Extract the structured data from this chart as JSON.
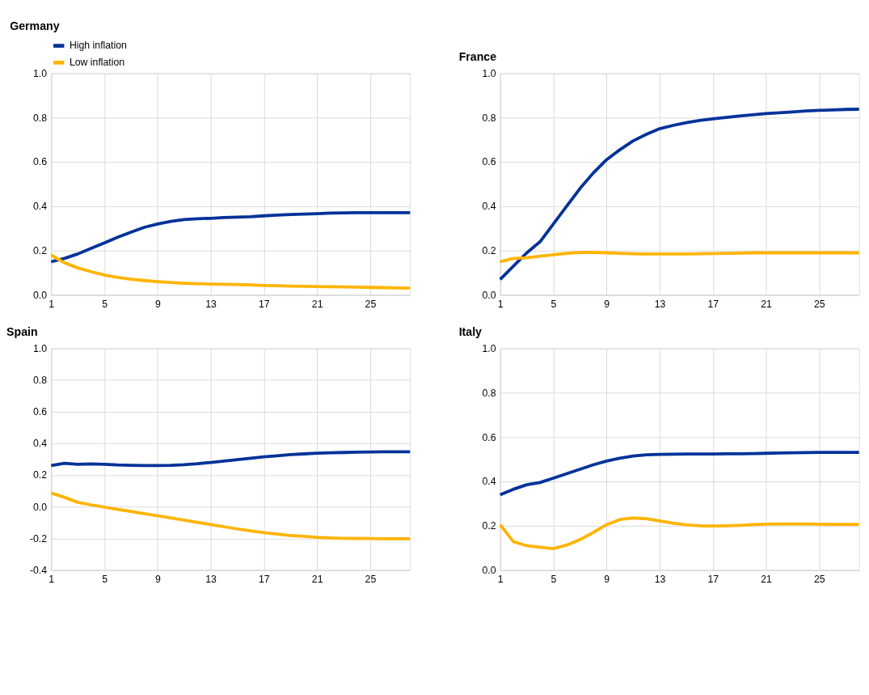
{
  "chart_data": [
    {
      "type": "line",
      "title": "Germany",
      "x": [
        1,
        2,
        3,
        4,
        5,
        6,
        7,
        8,
        9,
        10,
        11,
        12,
        13,
        14,
        15,
        16,
        17,
        18,
        19,
        20,
        21,
        22,
        23,
        24,
        25,
        26,
        27,
        28
      ],
      "xlim": [
        1,
        28
      ],
      "xticks": [
        1,
        5,
        9,
        13,
        17,
        21,
        25
      ],
      "ylim": [
        0,
        1
      ],
      "yticks": [
        {
          "value": 0,
          "label": "0.0"
        },
        {
          "value": 0.2,
          "label": "0.2"
        },
        {
          "value": 0.4,
          "label": "0.4"
        },
        {
          "value": 0.6,
          "label": "0.6"
        },
        {
          "value": 0.8,
          "label": "0.8"
        },
        {
          "value": 1,
          "label": "1.0"
        }
      ],
      "grid": true,
      "legend": "top left",
      "series": [
        {
          "name": "High inflation",
          "color": "#003299",
          "values": [
            0.15,
            0.165,
            0.185,
            0.21,
            0.235,
            0.26,
            0.283,
            0.305,
            0.32,
            0.332,
            0.34,
            0.344,
            0.346,
            0.349,
            0.351,
            0.353,
            0.357,
            0.36,
            0.363,
            0.365,
            0.367,
            0.369,
            0.37,
            0.371,
            0.371,
            0.371,
            0.371,
            0.371
          ]
        },
        {
          "name": "Low inflation",
          "color": "#ffb400",
          "values": [
            0.18,
            0.145,
            0.122,
            0.105,
            0.09,
            0.079,
            0.071,
            0.065,
            0.06,
            0.056,
            0.053,
            0.051,
            0.049,
            0.048,
            0.047,
            0.045,
            0.043,
            0.042,
            0.04,
            0.039,
            0.038,
            0.037,
            0.036,
            0.035,
            0.034,
            0.033,
            0.032,
            0.031
          ]
        }
      ]
    },
    {
      "type": "line",
      "title": "France",
      "x": [
        1,
        2,
        3,
        4,
        5,
        6,
        7,
        8,
        9,
        10,
        11,
        12,
        13,
        14,
        15,
        16,
        17,
        18,
        19,
        20,
        21,
        22,
        23,
        24,
        25,
        26,
        27,
        28
      ],
      "xlim": [
        1,
        28
      ],
      "xticks": [
        1,
        5,
        9,
        13,
        17,
        21,
        25
      ],
      "ylim": [
        0,
        1
      ],
      "yticks": [
        {
          "value": 0,
          "label": "0.0"
        },
        {
          "value": 0.2,
          "label": "0.2"
        },
        {
          "value": 0.4,
          "label": "0.4"
        },
        {
          "value": 0.6,
          "label": "0.6"
        },
        {
          "value": 0.8,
          "label": "0.8"
        },
        {
          "value": 1,
          "label": "1.0"
        }
      ],
      "grid": true,
      "series": [
        {
          "color": "#003299",
          "values": [
            0.07,
            0.13,
            0.19,
            0.24,
            0.32,
            0.4,
            0.48,
            0.55,
            0.61,
            0.655,
            0.695,
            0.725,
            0.75,
            0.765,
            0.777,
            0.787,
            0.795,
            0.801,
            0.807,
            0.813,
            0.818,
            0.822,
            0.826,
            0.83,
            0.833,
            0.835,
            0.837,
            0.838
          ]
        },
        {
          "color": "#ffb400",
          "values": [
            0.15,
            0.165,
            0.168,
            0.175,
            0.181,
            0.188,
            0.191,
            0.192,
            0.19,
            0.188,
            0.186,
            0.185,
            0.185,
            0.185,
            0.185,
            0.186,
            0.187,
            0.188,
            0.189,
            0.19,
            0.19,
            0.19,
            0.19,
            0.19,
            0.19,
            0.19,
            0.19,
            0.19
          ]
        }
      ]
    },
    {
      "type": "line",
      "title": "Spain",
      "x": [
        1,
        2,
        3,
        4,
        5,
        6,
        7,
        8,
        9,
        10,
        11,
        12,
        13,
        14,
        15,
        16,
        17,
        18,
        19,
        20,
        21,
        22,
        23,
        24,
        25,
        26,
        27,
        28
      ],
      "xlim": [
        1,
        28
      ],
      "xticks": [
        1,
        5,
        9,
        13,
        17,
        21,
        25
      ],
      "ylim": [
        -0.4,
        1
      ],
      "yticks": [
        {
          "value": -0.4,
          "label": "-0.4"
        },
        {
          "value": -0.2,
          "label": "-0.2"
        },
        {
          "value": 0,
          "label": "0.0"
        },
        {
          "value": 0.2,
          "label": "0.2"
        },
        {
          "value": 0.4,
          "label": "0.4"
        },
        {
          "value": 0.6,
          "label": "0.6"
        },
        {
          "value": 0.8,
          "label": "0.8"
        },
        {
          "value": 1,
          "label": "1.0"
        }
      ],
      "grid": true,
      "series": [
        {
          "color": "#003299",
          "values": [
            0.26,
            0.275,
            0.268,
            0.271,
            0.268,
            0.264,
            0.262,
            0.26,
            0.26,
            0.262,
            0.266,
            0.272,
            0.28,
            0.289,
            0.298,
            0.307,
            0.315,
            0.322,
            0.329,
            0.334,
            0.338,
            0.341,
            0.343,
            0.345,
            0.346,
            0.347,
            0.347,
            0.347
          ]
        },
        {
          "color": "#ffb400",
          "values": [
            0.087,
            0.06,
            0.028,
            0.012,
            -0.002,
            -0.017,
            -0.03,
            -0.043,
            -0.057,
            -0.07,
            -0.084,
            -0.098,
            -0.112,
            -0.126,
            -0.14,
            -0.152,
            -0.164,
            -0.173,
            -0.181,
            -0.187,
            -0.193,
            -0.197,
            -0.199,
            -0.2,
            -0.201,
            -0.202,
            -0.202,
            -0.202
          ]
        }
      ]
    },
    {
      "type": "line",
      "title": "Italy",
      "x": [
        1,
        2,
        3,
        4,
        5,
        6,
        7,
        8,
        9,
        10,
        11,
        12,
        13,
        14,
        15,
        16,
        17,
        18,
        19,
        20,
        21,
        22,
        23,
        24,
        25,
        26,
        27,
        28
      ],
      "xlim": [
        1,
        28
      ],
      "xticks": [
        1,
        5,
        9,
        13,
        17,
        21,
        25
      ],
      "ylim": [
        0,
        1
      ],
      "yticks": [
        {
          "value": 0,
          "label": "0.0"
        },
        {
          "value": 0.2,
          "label": "0.2"
        },
        {
          "value": 0.4,
          "label": "0.4"
        },
        {
          "value": 0.6,
          "label": "0.6"
        },
        {
          "value": 0.8,
          "label": "0.8"
        },
        {
          "value": 1,
          "label": "1.0"
        }
      ],
      "grid": true,
      "series": [
        {
          "color": "#003299",
          "values": [
            0.34,
            0.365,
            0.385,
            0.395,
            0.415,
            0.435,
            0.455,
            0.475,
            0.492,
            0.505,
            0.515,
            0.52,
            0.522,
            0.523,
            0.524,
            0.524,
            0.524,
            0.525,
            0.525,
            0.526,
            0.527,
            0.528,
            0.529,
            0.53,
            0.531,
            0.531,
            0.531,
            0.531
          ]
        },
        {
          "color": "#ffb400",
          "values": [
            0.205,
            0.128,
            0.11,
            0.103,
            0.097,
            0.113,
            0.137,
            0.17,
            0.205,
            0.228,
            0.235,
            0.232,
            0.222,
            0.212,
            0.204,
            0.2,
            0.199,
            0.2,
            0.202,
            0.205,
            0.207,
            0.208,
            0.208,
            0.208,
            0.207,
            0.206,
            0.206,
            0.206
          ]
        }
      ]
    }
  ]
}
